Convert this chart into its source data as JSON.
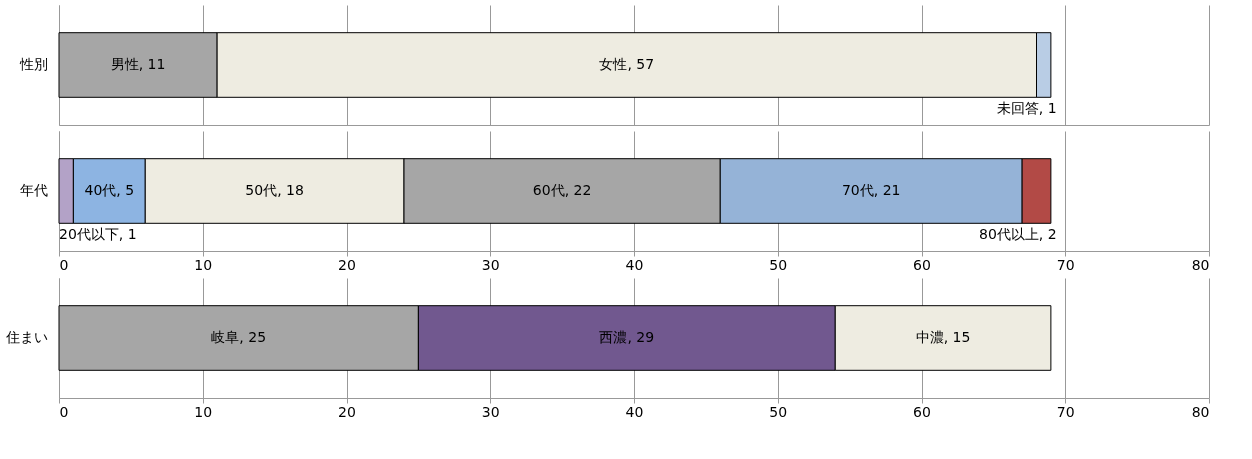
{
  "chart_data": [
    {
      "type": "bar",
      "orientation": "horizontal",
      "stacked": true,
      "categories": [
        "性別"
      ],
      "xlim": [
        0,
        80
      ],
      "xticks": [
        0,
        10,
        20,
        30,
        40,
        50,
        60,
        70,
        80
      ],
      "grid": "x",
      "tick_labels": "y",
      "series": [
        {
          "color": "#a6a6a6",
          "values": [
            11
          ],
          "value_labels": [
            "男性, 11"
          ]
        },
        {
          "color": "#eeece1",
          "values": [
            57
          ],
          "value_labels": [
            "女性, 57"
          ]
        },
        {
          "color": "#b9cde5",
          "values": [
            1
          ],
          "value_labels": [
            "未回答, 1"
          ]
        }
      ]
    },
    {
      "type": "bar",
      "orientation": "horizontal",
      "stacked": true,
      "categories": [
        "年代"
      ],
      "xlim": [
        0,
        80
      ],
      "xticks": [
        0,
        10,
        20,
        30,
        40,
        50,
        60,
        70,
        80
      ],
      "grid": "x",
      "series": [
        {
          "color": "#b3a2c7",
          "values": [
            1
          ],
          "value_labels": [
            "20代以下, 1"
          ]
        },
        {
          "color": "#8db4e2",
          "values": [
            5
          ],
          "value_labels": [
            "40代, 5"
          ]
        },
        {
          "color": "#eeece1",
          "values": [
            18
          ],
          "value_labels": [
            "50代, 18"
          ]
        },
        {
          "color": "#a6a6a6",
          "values": [
            22
          ],
          "value_labels": [
            "60代, 22"
          ]
        },
        {
          "color": "#95b3d7",
          "values": [
            21
          ],
          "value_labels": [
            "70代, 21"
          ]
        },
        {
          "color": "#b24a46",
          "values": [
            2
          ],
          "value_labels": [
            "80代以上, 2"
          ]
        }
      ]
    },
    {
      "type": "bar",
      "orientation": "horizontal",
      "stacked": true,
      "categories": [
        "住まい"
      ],
      "xlim": [
        0,
        80
      ],
      "xticks": [
        0,
        10,
        20,
        30,
        40,
        50,
        60,
        70,
        80
      ],
      "grid": "x",
      "series": [
        {
          "color": "#a6a6a6",
          "values": [
            25
          ],
          "value_labels": [
            "岐阜, 25"
          ]
        },
        {
          "color": "#71588f",
          "values": [
            29
          ],
          "value_labels": [
            "西濃, 29"
          ]
        },
        {
          "color": "#eeece1",
          "values": [
            15
          ],
          "value_labels": [
            "中濃, 15"
          ]
        }
      ]
    }
  ]
}
